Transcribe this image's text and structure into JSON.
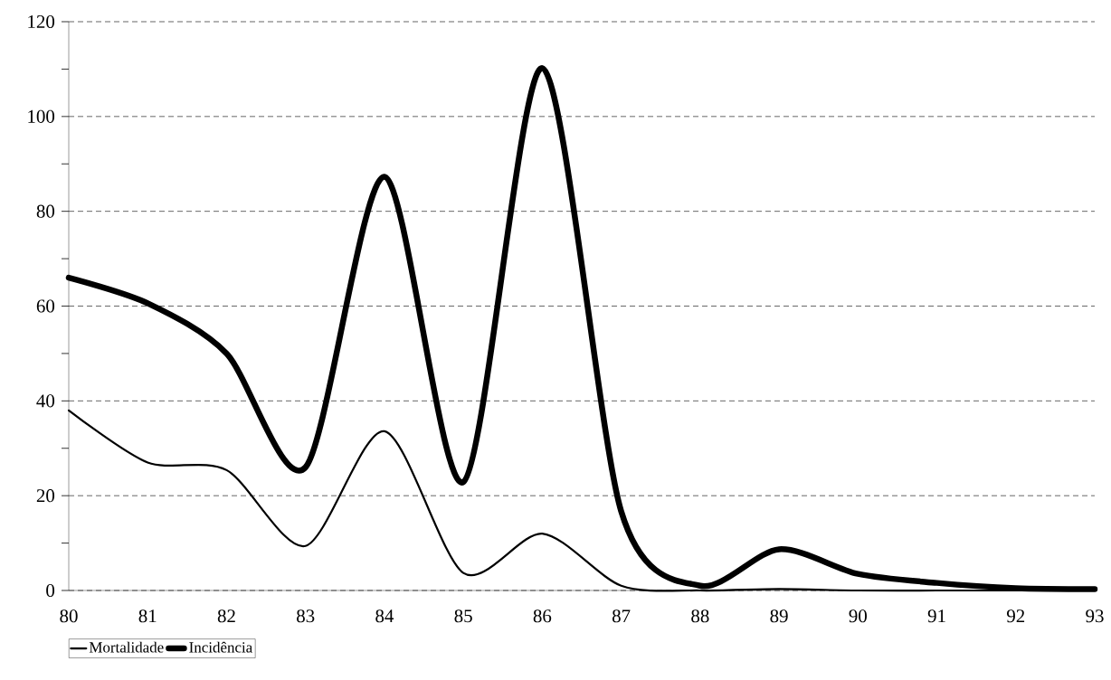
{
  "chart_data": {
    "type": "line",
    "x": [
      80,
      81,
      82,
      83,
      84,
      85,
      86,
      87,
      88,
      89,
      90,
      91,
      92,
      93
    ],
    "series": [
      {
        "name": "Mortalidade",
        "color": "#000000",
        "values": [
          38,
          27,
          25.4,
          9.4,
          33.6,
          3.7,
          12,
          1,
          0,
          0.3,
          0,
          0,
          0,
          0
        ]
      },
      {
        "name": "Incidência",
        "color": "#000000",
        "values": [
          66,
          60.6,
          50,
          26,
          87.3,
          22.9,
          110.2,
          16.7,
          1,
          8.7,
          3.5,
          1.6,
          0.5,
          0.3
        ]
      }
    ],
    "xlim": [
      80,
      93
    ],
    "ylim": [
      0,
      120
    ],
    "xticks": [
      80,
      81,
      82,
      83,
      84,
      85,
      86,
      87,
      88,
      89,
      90,
      91,
      92,
      93
    ],
    "yticks": [
      0,
      {
        "value": 10,
        "label": null
      },
      20,
      {
        "value": 30,
        "label": null
      },
      40,
      {
        "value": 50,
        "label": null
      },
      60,
      {
        "value": 70,
        "label": null
      },
      80,
      {
        "value": 90,
        "label": null
      },
      100,
      {
        "value": 110,
        "label": null
      },
      120
    ],
    "grid": "y",
    "legend": "bottom left",
    "marker": "none",
    "line_style": "solid"
  }
}
